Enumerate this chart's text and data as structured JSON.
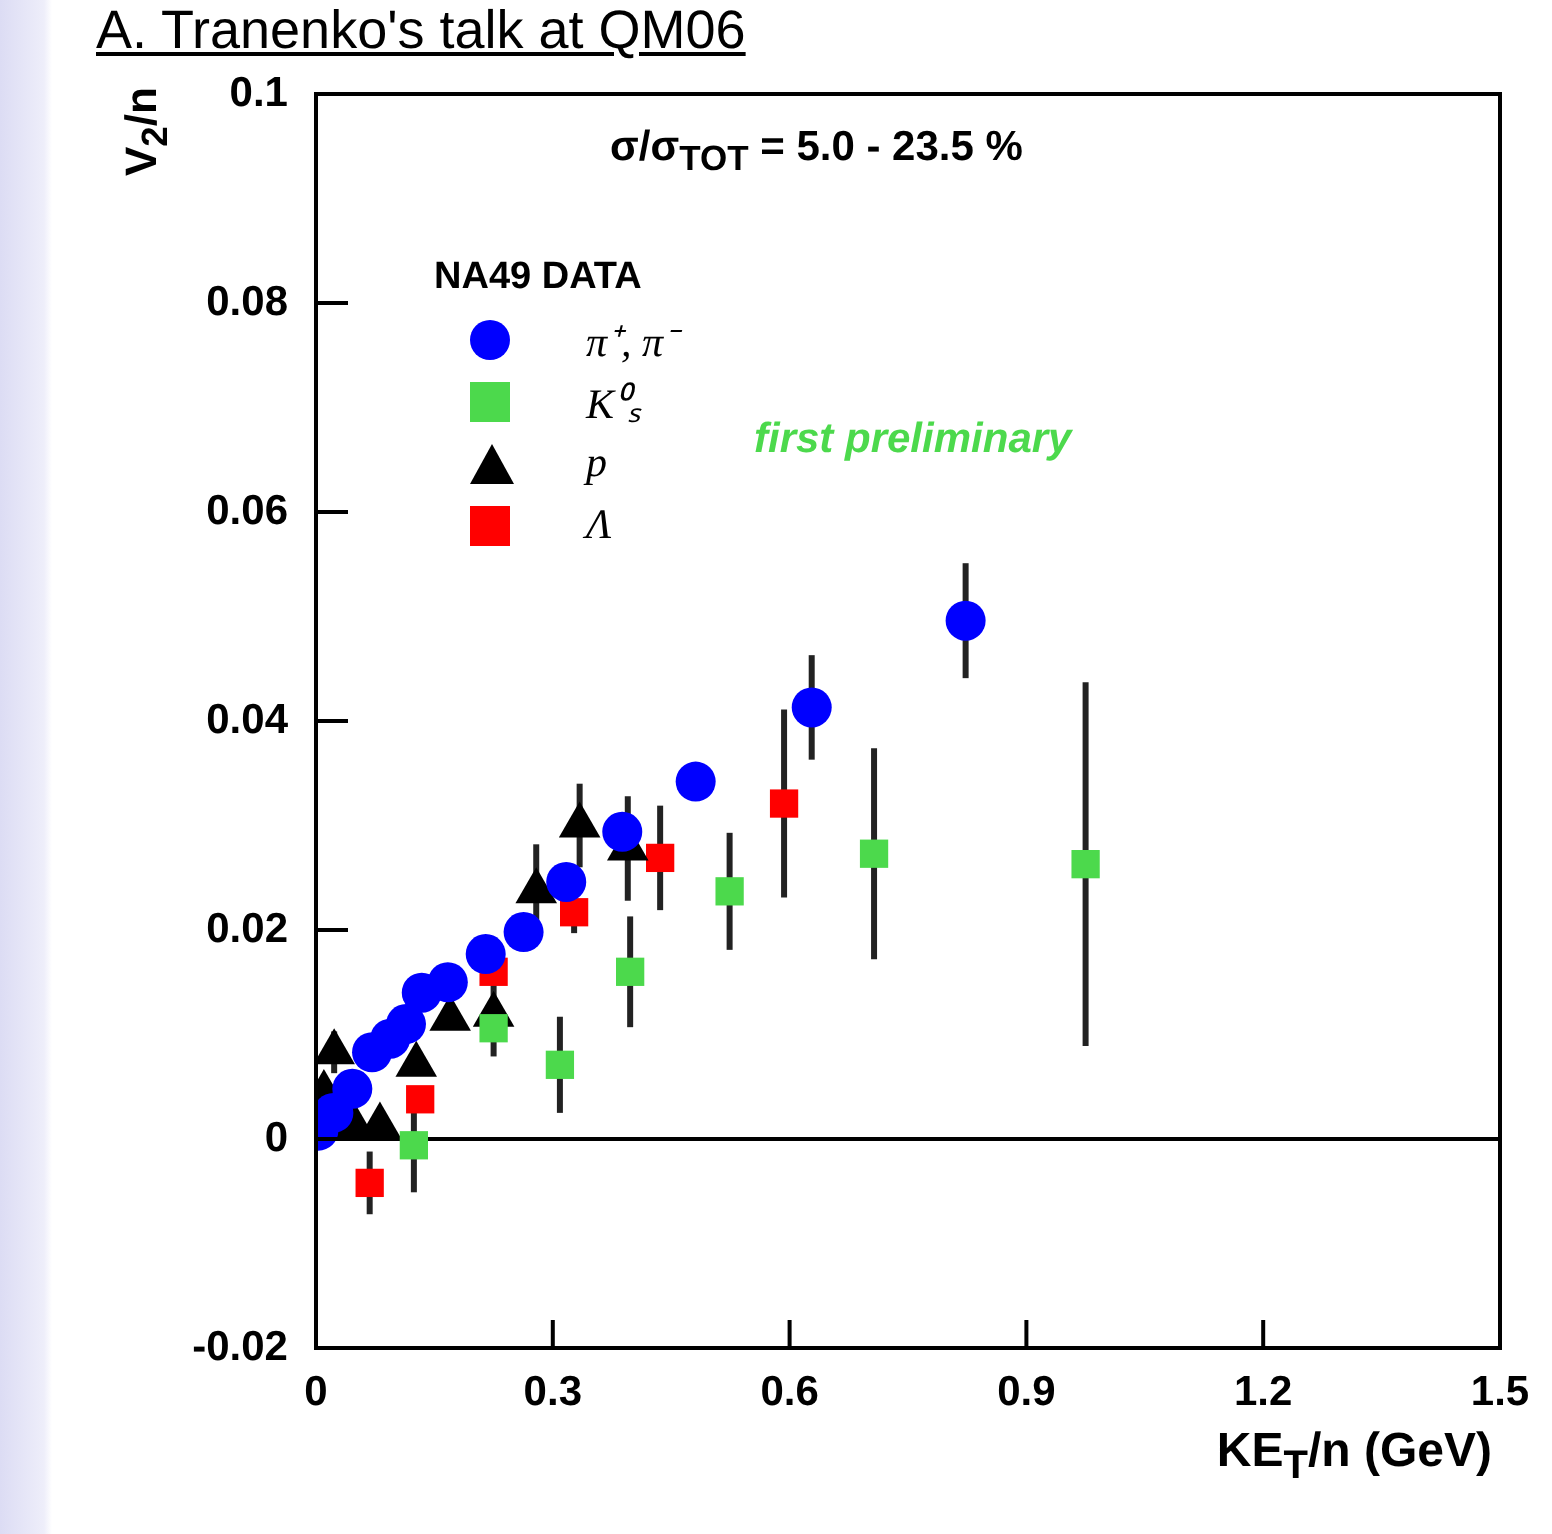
{
  "chart_data": {
    "type": "scatter",
    "xlabel": "KE$_{T}$/n (GeV)",
    "ylabel": "V$_{2}$/n",
    "legend_title": "NA49 DATA",
    "legend": "top left",
    "xlim": [
      0,
      1.5
    ],
    "xticks": [
      0,
      0.3,
      0.6,
      0.9,
      1.2,
      1.5
    ],
    "ylim": [
      -0.02,
      0.1
    ],
    "yticks": [
      -0.02,
      0,
      0.02,
      0.04,
      0.06,
      0.08,
      0.1
    ],
    "grid": false,
    "ref_lines": [
      {
        "axis": "y",
        "value": 0,
        "color": "#000000"
      }
    ],
    "annotations": [
      "A. Tranenko's talk at QM06",
      "σ/σ$_{TOT}$ = 5.0 - 23.5 %",
      "first preliminary"
    ],
    "series": [
      {
        "name": "π⁺, π⁻",
        "color": "#0000ff",
        "marker": "circle",
        "x": [
          0.003,
          0.022,
          0.046,
          0.071,
          0.094,
          0.114,
          0.134,
          0.167,
          0.215,
          0.263,
          0.317,
          0.388,
          0.481,
          0.628,
          0.823
        ],
        "values": [
          0.0008,
          0.0025,
          0.0048,
          0.0083,
          0.0096,
          0.011,
          0.014,
          0.015,
          0.0177,
          0.0198,
          0.0246,
          0.0294,
          0.0342,
          0.0413,
          0.0496
        ],
        "errors": [
          null,
          null,
          null,
          null,
          null,
          null,
          null,
          null,
          null,
          null,
          null,
          null,
          null,
          0.005,
          0.0055
        ]
      },
      {
        "name": "K⁰ₛ",
        "color": "#4cd94c",
        "marker": "square",
        "x": [
          0.124,
          0.225,
          0.309,
          0.398,
          0.524,
          0.707,
          0.975
        ],
        "values": [
          -0.0006,
          0.0106,
          0.0071,
          0.016,
          0.0237,
          0.0273,
          0.0263
        ],
        "errors": [
          0.0045,
          null,
          0.0046,
          0.0053,
          0.0056,
          0.0101,
          0.0174
        ]
      },
      {
        "name": "p",
        "color": "#000000",
        "marker": "triangle",
        "x": [
          0.01,
          0.023,
          0.048,
          0.081,
          0.127,
          0.17,
          0.225,
          0.279,
          0.334,
          0.395
        ],
        "values": [
          0.0044,
          0.0083,
          0.0013,
          0.0013,
          0.0071,
          0.0115,
          0.0119,
          0.0237,
          0.03,
          0.0278
        ],
        "errors": [
          null,
          0.002,
          null,
          null,
          null,
          null,
          0.004,
          0.0045,
          0.004,
          0.005
        ]
      },
      {
        "name": "Λ",
        "color": "#ff0000",
        "marker": "square",
        "x": [
          0.068,
          0.132,
          0.225,
          0.327,
          0.436,
          0.593
        ],
        "values": [
          -0.0042,
          0.0038,
          0.016,
          0.0217,
          0.0269,
          0.0321
        ],
        "errors": [
          0.003,
          null,
          null,
          0.002,
          0.005,
          0.009
        ]
      }
    ]
  }
}
